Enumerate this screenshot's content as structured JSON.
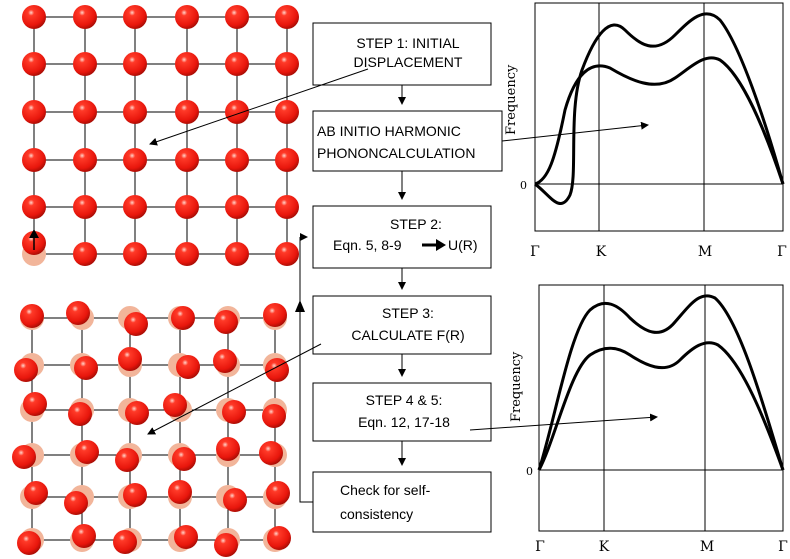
{
  "flowchart": {
    "steps": [
      {
        "id": "step1",
        "lines": [
          "STEP 1: INITIAL",
          "DISPLACEMENT"
        ]
      },
      {
        "id": "harmonic",
        "lines": [
          "AB INITIO HARMONIC",
          "PHONONCALCULATION"
        ]
      },
      {
        "id": "step2",
        "lines": [
          "STEP 2:",
          "Eqn. 5, 8-9",
          "U(R)"
        ]
      },
      {
        "id": "step3",
        "lines": [
          "STEP 3:",
          "CALCULATE F(R)"
        ]
      },
      {
        "id": "step45",
        "lines": [
          "STEP 4 & 5:",
          "Eqn. 12, 17-18"
        ]
      },
      {
        "id": "check",
        "lines": [
          "Check for self-",
          "consistency"
        ]
      }
    ]
  },
  "plots": [
    {
      "ylabel": "Frequency",
      "zero_label": "0",
      "x_ticks": [
        "Γ",
        "K",
        "M",
        "Γ"
      ]
    },
    {
      "ylabel": "Frequency",
      "zero_label": "0",
      "x_ticks": [
        "Γ",
        "K",
        "M",
        "Γ"
      ]
    }
  ],
  "colors": {
    "atom": "#e8160c",
    "atom_ghost": "#f2b59a",
    "line": "#000000"
  }
}
